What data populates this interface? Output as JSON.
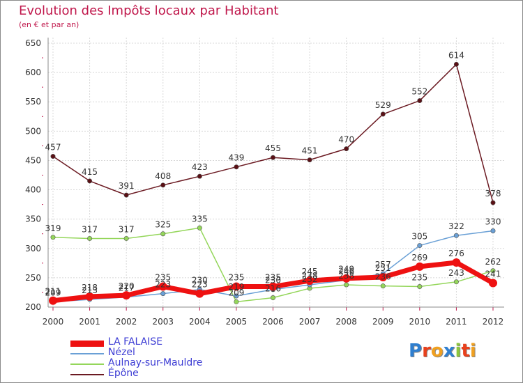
{
  "title": "Evolution des Impôts locaux par Habitant",
  "subtitle": "(en € et par an)",
  "logo": {
    "text": "Proxiti",
    "letters": [
      {
        "ch": "P",
        "color": "#2f7fd0"
      },
      {
        "ch": "r",
        "color": "#e8401c"
      },
      {
        "ch": "o",
        "color": "#f0a020"
      },
      {
        "ch": "x",
        "color": "#2f7fd0"
      },
      {
        "ch": "i",
        "color": "#8cc63e"
      },
      {
        "ch": "t",
        "color": "#e8401c"
      },
      {
        "ch": "i",
        "color": "#f0a020"
      }
    ]
  },
  "chart_data": {
    "type": "line",
    "categories": [
      "2000",
      "2001",
      "2002",
      "2003",
      "2004",
      "2005",
      "2006",
      "2007",
      "2008",
      "2009",
      "2010",
      "2011",
      "2012"
    ],
    "ylim": [
      200,
      650
    ],
    "yticks": [
      200,
      250,
      300,
      350,
      400,
      450,
      500,
      550,
      600,
      650
    ],
    "grid": true,
    "legend_position": "bottom-left",
    "series": [
      {
        "name": "Épône",
        "color": "#6b1a22",
        "values": [
          457,
          415,
          391,
          408,
          423,
          439,
          455,
          451,
          470,
          529,
          552,
          614,
          378
        ],
        "labels": [
          "457",
          "415",
          "391",
          "408",
          "423",
          "439",
          "455",
          "451",
          "470",
          "529",
          "552",
          "614",
          "378"
        ]
      },
      {
        "name": "Aulnay-sur-Mauldre",
        "color": "#94d65a",
        "values": [
          319,
          317,
          317,
          325,
          335,
          209,
          216,
          232,
          238,
          236,
          235,
          243,
          262
        ],
        "labels": [
          "319",
          "317",
          "317",
          "325",
          "335",
          "209",
          "216",
          "232",
          "238",
          "236",
          "235",
          "243",
          "262"
        ]
      },
      {
        "name": "Nézel",
        "color": "#6aa0d6",
        "values": [
          209,
          213,
          217,
          223,
          230,
          219,
          230,
          238,
          246,
          257,
          305,
          322,
          330
        ],
        "labels": [
          "209",
          "213",
          "217",
          "223",
          "230",
          "219",
          "230",
          "238",
          "246",
          "257",
          "305",
          "322",
          "330"
        ]
      },
      {
        "name": "LA FALAISE",
        "color": "#ee1111",
        "values": [
          211,
          218,
          220,
          235,
          223,
          235,
          235,
          245,
          249,
          251,
          269,
          276,
          241
        ],
        "labels": [
          "211",
          "218",
          "220",
          "235",
          "223",
          "235",
          "235",
          "245",
          "249",
          "251",
          "269",
          "276",
          "241"
        ]
      }
    ]
  }
}
